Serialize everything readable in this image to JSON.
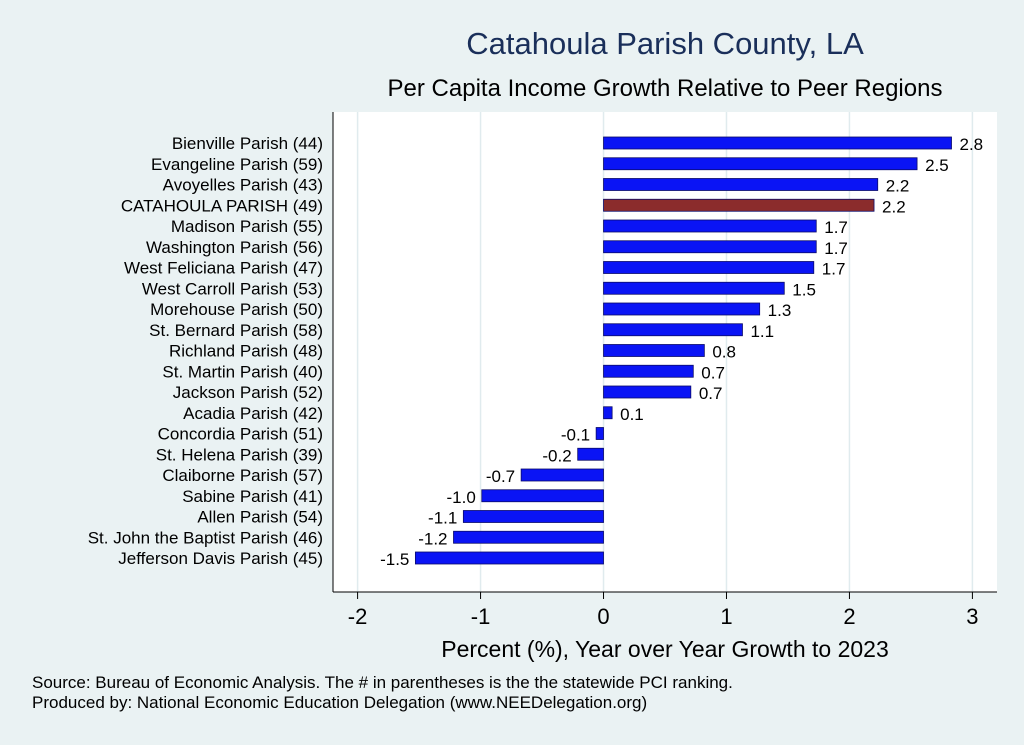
{
  "chart_data": {
    "type": "bar",
    "orientation": "horizontal",
    "title": "Catahoula Parish County, LA",
    "subtitle": "Per Capita Income Growth Relative to Peer Regions",
    "xlabel": "Percent (%), Year over Year Growth to 2023",
    "ylabel": "",
    "xlim": [
      -2.2,
      3.2
    ],
    "xticks": [
      -2,
      -1,
      0,
      1,
      2,
      3
    ],
    "grid": true,
    "categories": [
      "Bienville Parish (44)",
      "Evangeline Parish (59)",
      "Avoyelles Parish (43)",
      "CATAHOULA PARISH (49)",
      "Madison Parish (55)",
      "Washington Parish (56)",
      "West Feliciana Parish (47)",
      "West Carroll Parish (53)",
      "Morehouse Parish (50)",
      "St. Bernard Parish (58)",
      "Richland Parish (48)",
      "St. Martin Parish (40)",
      "Jackson Parish (52)",
      "Acadia Parish (42)",
      "Concordia Parish (51)",
      "St. Helena Parish (39)",
      "Claiborne Parish (57)",
      "Sabine Parish (41)",
      "Allen Parish (54)",
      "St. John the Baptist Parish (46)",
      "Jefferson Davis Parish (45)"
    ],
    "values": [
      2.83,
      2.55,
      2.23,
      2.2,
      1.73,
      1.73,
      1.71,
      1.47,
      1.27,
      1.13,
      0.82,
      0.73,
      0.71,
      0.07,
      -0.06,
      -0.21,
      -0.67,
      -0.99,
      -1.14,
      -1.22,
      -1.53
    ],
    "value_labels": [
      "2.8",
      "2.5",
      "2.2",
      "2.2",
      "1.7",
      "1.7",
      "1.7",
      "1.5",
      "1.3",
      "1.1",
      "0.8",
      "0.7",
      "0.7",
      "0.1",
      "-0.1",
      "-0.2",
      "-0.7",
      "-1.0",
      "-1.1",
      "-1.2",
      "-1.5"
    ],
    "highlight_index": 3,
    "colors": {
      "bar": "#0a14f5",
      "highlight": "#8b2c2c",
      "bar_edge": "#0a0a6a"
    }
  },
  "footer": {
    "source": "Source: Bureau of Economic Analysis. The # in parentheses is the the statewide PCI ranking.",
    "produced_by": "Produced by: National Economic Education Delegation (www.NEEDelegation.org)"
  }
}
